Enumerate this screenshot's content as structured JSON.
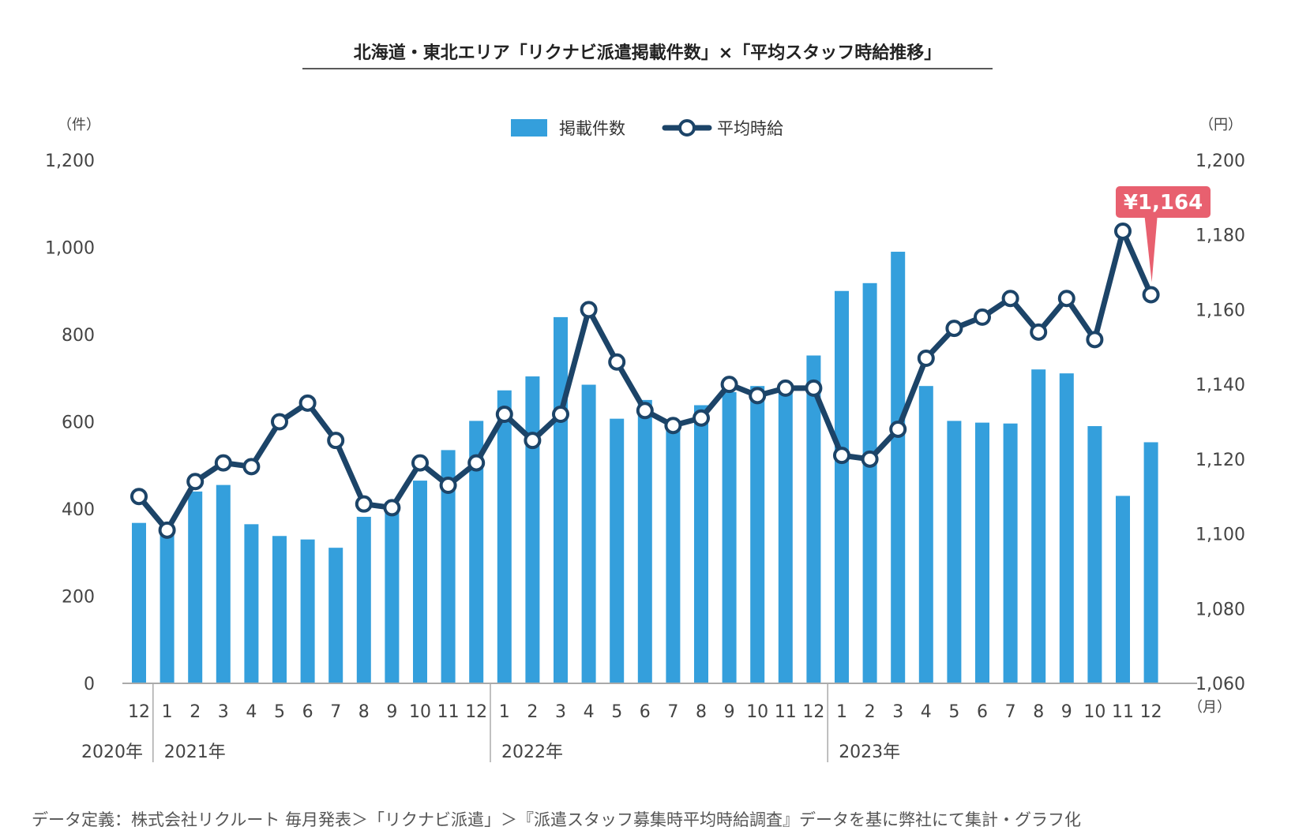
{
  "title": "北海道・東北エリア「リクナビ派遣掲載件数」×「平均スタッフ時給推移」",
  "source_note": "データ定義：株式会社リクルート 毎月発表＞「リクナビ派遣」＞『派遣スタッフ募集時平均時給調査』データを基に弊社にて集計・グラフ化",
  "legend": {
    "bar_label": "掲載件数",
    "line_label": "平均時給"
  },
  "axes": {
    "left_unit": "（件）",
    "right_unit": "（円）",
    "month_unit": "（月）",
    "left_ticks": [
      "0",
      "200",
      "400",
      "600",
      "800",
      "1,000",
      "1,200"
    ],
    "right_ticks": [
      "1,060",
      "1,080",
      "1,100",
      "1,120",
      "1,140",
      "1,160",
      "1,180",
      "1,200"
    ]
  },
  "callout": {
    "text": "¥1,164"
  },
  "colors": {
    "bar": "#349fdc",
    "line": "#1c4468",
    "callout": "#e8606f",
    "axis": "#aaaaaa"
  },
  "chart_data": {
    "type": "bar+line",
    "categories": [
      "12",
      "1",
      "2",
      "3",
      "4",
      "5",
      "6",
      "7",
      "8",
      "9",
      "10",
      "11",
      "12",
      "1",
      "2",
      "3",
      "4",
      "5",
      "6",
      "7",
      "8",
      "9",
      "10",
      "11",
      "12",
      "1",
      "2",
      "3",
      "4",
      "5",
      "6",
      "7",
      "8",
      "9",
      "10",
      "11",
      "12"
    ],
    "year_groups": [
      {
        "label": "2020年",
        "start": 0,
        "count": 1
      },
      {
        "label": "2021年",
        "start": 1,
        "count": 12
      },
      {
        "label": "2022年",
        "start": 13,
        "count": 12
      },
      {
        "label": "2023年",
        "start": 25,
        "count": 12
      }
    ],
    "series": [
      {
        "name": "掲載件数",
        "type": "bar",
        "axis": "left",
        "values": [
          368,
          340,
          440,
          455,
          365,
          338,
          330,
          311,
          382,
          405,
          465,
          535,
          602,
          672,
          704,
          840,
          685,
          607,
          650,
          580,
          638,
          668,
          682,
          672,
          752,
          900,
          918,
          990,
          682,
          602,
          598,
          596,
          720,
          711,
          590,
          430,
          553
        ]
      },
      {
        "name": "平均時給",
        "type": "line",
        "axis": "right",
        "values": [
          1110,
          1101,
          1114,
          1119,
          1118,
          1130,
          1135,
          1125,
          1108,
          1107,
          1119,
          1113,
          1119,
          1132,
          1125,
          1132,
          1160,
          1146,
          1133,
          1129,
          1131,
          1140,
          1137,
          1139,
          1139,
          1121,
          1120,
          1128,
          1147,
          1155,
          1158,
          1163,
          1154,
          1163,
          1152,
          1181,
          1164
        ]
      }
    ],
    "ylim_left": [
      0,
      1200
    ],
    "ylim_right": [
      1060,
      1200
    ],
    "grid": false,
    "legend_position": "top-center"
  }
}
